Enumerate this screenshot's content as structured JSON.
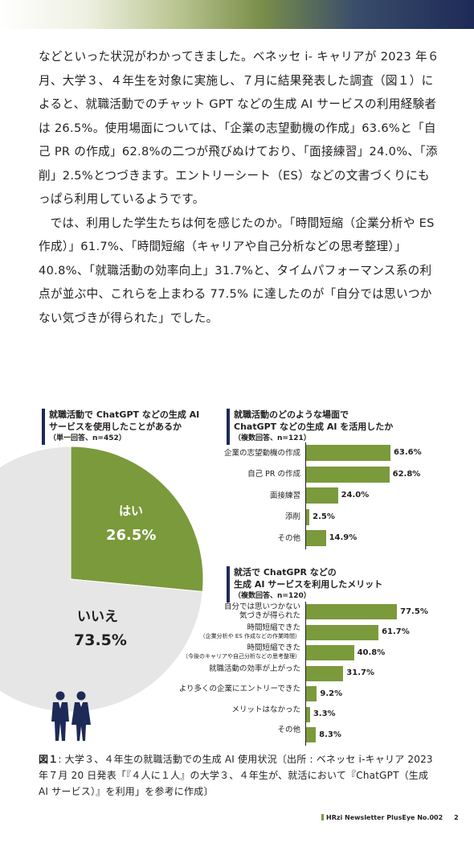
{
  "body": {
    "paragraph1": "などといった状況がわかってきました。ベネッセ i- キャリアが 2023 年６月、大学３、４年生を対象に実施し、７月に結果発表した調査（図１）によると、就職活動でのチャット GPT などの生成 AI サービスの利用経験者は 26.5%。使用場面については、「企業の志望動機の作成」63.6%と「自己 PR の作成」62.8%の二つが飛びぬけており、「面接練習」24.0%、「添削」2.5%とつづきます。エントリーシート（ES）などの文書づくりにもっぱら利用しているようです。",
    "paragraph2": "では、利用した学生たちは何を感じたのか。「時間短縮（企業分析や ES 作成）」61.7%、「時間短縮（キャリアや自己分析などの思考整理）」40.8%、「就職活動の効率向上」31.7%と、タイムパフォーマンス系の利点が並ぶ中、これらを上まわる 77.5% に達したのが「自分では思いつかない気づきが得られた」でした。"
  },
  "chart_data": [
    {
      "type": "pie",
      "title_line1": "就職活動で ChatGPT などの生成 AI",
      "title_line2": "サービスを使用したことがあるか",
      "subtitle": "（単一回答、n=452）",
      "categories": [
        "はい",
        "いいえ"
      ],
      "values": [
        26.5,
        73.5
      ],
      "value_labels": [
        "26.5%",
        "73.5%"
      ],
      "colors": [
        "#7a9a3c",
        "#e6e6e6"
      ]
    },
    {
      "type": "bar",
      "title_line1": "就職活動のどのような場面で",
      "title_line2": "ChatGPT などの生成 AI を活用したか",
      "subtitle": "（複数回答、n=121）",
      "categories": [
        "企業の志望動機の作成",
        "自己 PR の作成",
        "面接練習",
        "添削",
        "その他"
      ],
      "values": [
        63.6,
        62.8,
        24.0,
        2.5,
        14.9
      ],
      "value_labels": [
        "63.6%",
        "62.8%",
        "24.0%",
        "2.5%",
        "14.9%"
      ],
      "xlim": [
        0,
        100
      ],
      "color": "#7a9a3c"
    },
    {
      "type": "bar",
      "title_line1": "就活で ChatGPR などの",
      "title_line2": "生成 AI サービスを利用したメリット",
      "subtitle": "（複数回答、n=120）",
      "categories": [
        {
          "line1": "自分では思いつかない",
          "line2": "気づきが得られた",
          "note": ""
        },
        {
          "line1": "時間短縮できた",
          "line2": "",
          "note": "（企業分析や ES 作成などの作業時間）"
        },
        {
          "line1": "時間短縮できた",
          "line2": "",
          "note": "（今後のキャリアや自己分析などの思考整理）"
        },
        {
          "line1": "就職活動の効率が上がった",
          "line2": "",
          "note": ""
        },
        {
          "line1": "より多くの企業にエントリーできた",
          "line2": "",
          "note": ""
        },
        {
          "line1": "メリットはなかった",
          "line2": "",
          "note": ""
        },
        {
          "line1": "その他",
          "line2": "",
          "note": ""
        }
      ],
      "values": [
        77.5,
        61.7,
        40.8,
        31.7,
        9.2,
        3.3,
        8.3
      ],
      "value_labels": [
        "77.5%",
        "61.7%",
        "40.8%",
        "31.7%",
        "9.2%",
        "3.3%",
        "8.3%"
      ],
      "xlim": [
        0,
        100
      ],
      "color": "#7a9a3c"
    }
  ],
  "caption": {
    "label": "図１",
    "text": ": 大学３、４年生の就職活動での生成 AI 使用状況〔出所 : ベネッセ i-キャリア 2023 年７月 20 日発表「『４人に１人』の大学３、４年生が、就活において『ChatGPT（生成 AI サービス）』を利用」を参考に作成〕"
  },
  "footer": {
    "publication": "HRzi Newsletter PlusEye No.002",
    "page": "2"
  },
  "colors": {
    "accent_green": "#7a9a3c",
    "navy": "#1d2a57",
    "pie_grey": "#e6e6e6"
  },
  "icons": [
    "businesspeople-icon"
  ]
}
